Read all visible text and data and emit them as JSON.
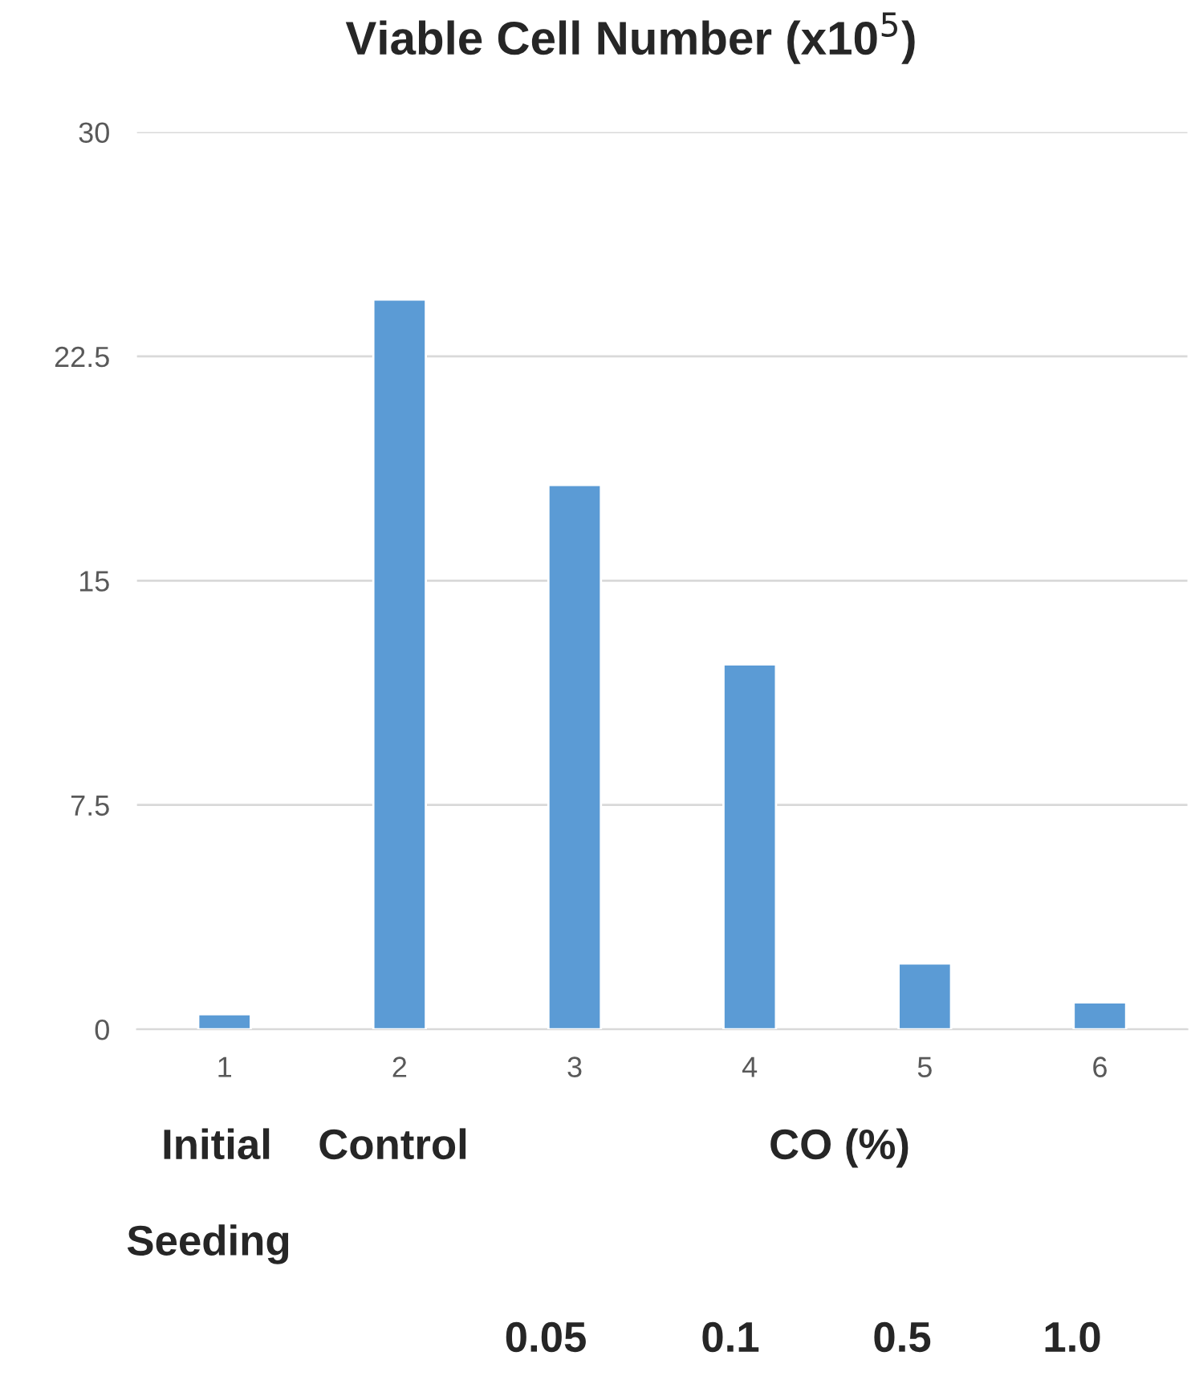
{
  "chart_data": {
    "type": "bar",
    "title": "Viable Cell Number (x10$^{5}$)",
    "categories": [
      "1",
      "2",
      "3",
      "4",
      "5",
      "6"
    ],
    "values": [
      0.5,
      24.4,
      18.2,
      12.2,
      2.2,
      0.9
    ],
    "color": "#5b9bd5",
    "ylim": [
      0,
      30
    ],
    "yticks": [
      0,
      {
        "value": 7.5,
        "label": "7.5"
      },
      15,
      {
        "value": 22.5,
        "label": "22.5"
      },
      30
    ],
    "grid": "y",
    "annotations": [
      "Initial",
      "Control",
      "CO (%)",
      "Seeding",
      "0.05",
      "0.1",
      "0.5",
      "1.0"
    ]
  }
}
